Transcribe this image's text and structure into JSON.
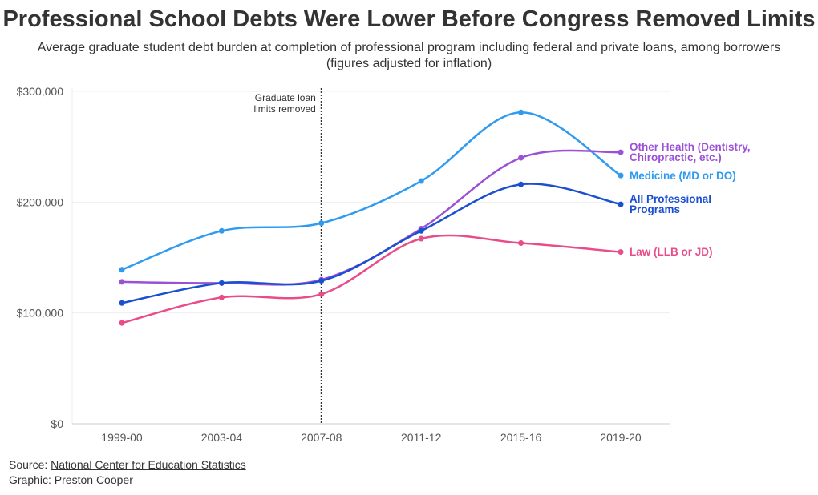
{
  "title": "Professional School Debts Were Lower Before Congress Removed Limits",
  "subtitle": "Average graduate student debt burden at completion of professional program including federal and private loans, among borrowers (figures adjusted for inflation)",
  "footer": {
    "source_prefix": "Source: ",
    "source_link": "National Center for Education Statistics",
    "graphic": "Graphic: Preston Cooper"
  },
  "chart_data": {
    "type": "line",
    "title": "Professional School Debts Were Lower Before Congress Removed Limits",
    "xlabel": "",
    "ylabel": "",
    "categories": [
      "1999-00",
      "2003-04",
      "2007-08",
      "2011-12",
      "2015-16",
      "2019-20"
    ],
    "ylim": [
      0,
      300000
    ],
    "yticks": [
      0,
      100000,
      200000,
      300000
    ],
    "ytick_labels": [
      "$0",
      "$100,000",
      "$200,000",
      "$300,000"
    ],
    "grid": true,
    "annotation": {
      "category": "2007-08",
      "lines": [
        "Graduate loan",
        "limits removed"
      ]
    },
    "series": [
      {
        "name": "Medicine (MD or DO)",
        "label_lines": [
          "Medicine (MD or DO)"
        ],
        "color": "#2e9bf0",
        "values": [
          139000,
          174000,
          181000,
          219000,
          281000,
          224000
        ]
      },
      {
        "name": "Other Health (Dentistry, Chiropractic, etc.)",
        "label_lines": [
          "Other Health (Dentistry,",
          "Chiropractic, etc.)"
        ],
        "color": "#9b51d6",
        "values": [
          128000,
          127000,
          130000,
          176000,
          240000,
          245000
        ]
      },
      {
        "name": "All Professional Programs",
        "label_lines": [
          "All Professional",
          "Programs"
        ],
        "color": "#1a4fd0",
        "values": [
          109000,
          127000,
          129000,
          174000,
          216000,
          198000
        ]
      },
      {
        "name": "Law (LLB or JD)",
        "label_lines": [
          "Law (LLB or JD)"
        ],
        "color": "#e84d8a",
        "values": [
          91000,
          114000,
          117000,
          167000,
          163000,
          155000
        ]
      }
    ]
  }
}
